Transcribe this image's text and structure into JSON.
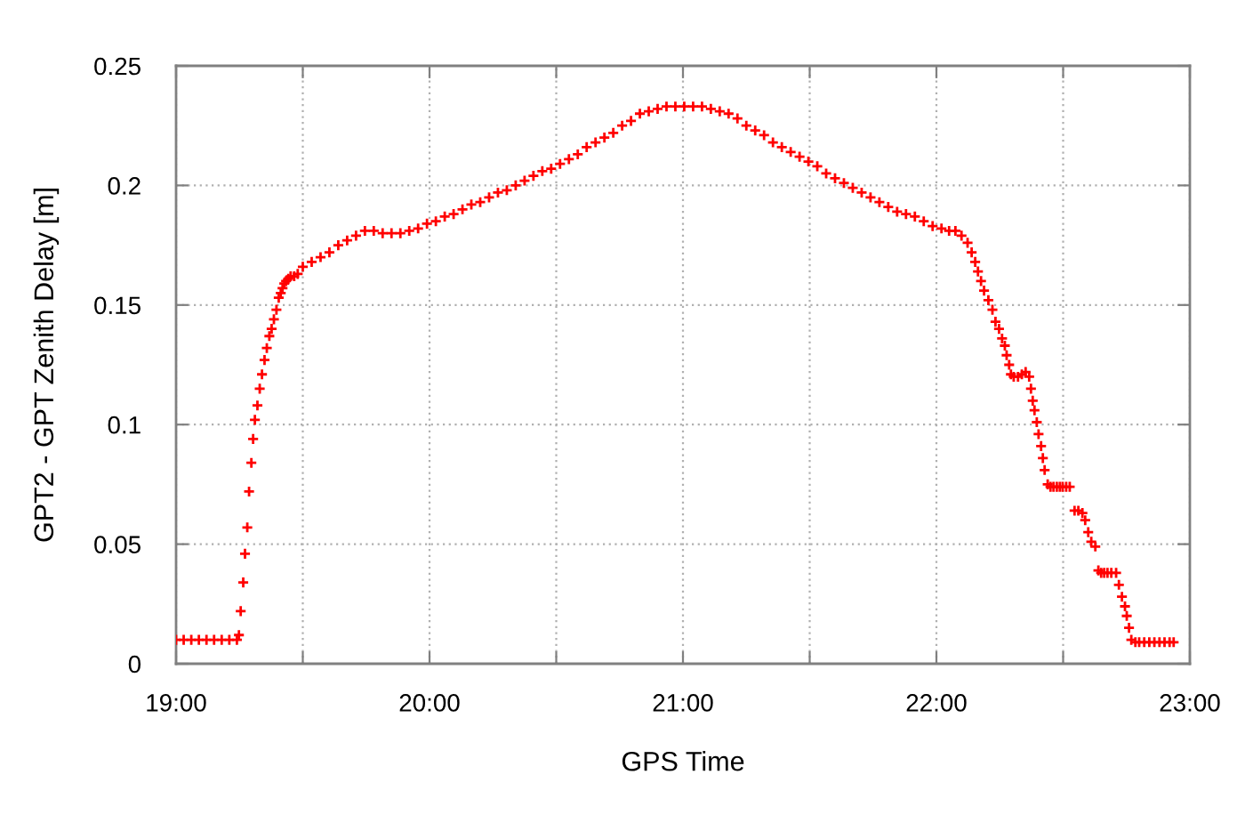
{
  "chart_data": {
    "type": "scatter",
    "xlabel": "GPS Time",
    "ylabel": "GPT2 - GPT Zenith Delay [m]",
    "color": "#ff0000",
    "marker": "cross",
    "grid": true,
    "xlim": [
      19,
      23
    ],
    "ylim": [
      0,
      0.25
    ],
    "xticks": [
      {
        "value": 19,
        "label": "19:00"
      },
      {
        "value": 19.5,
        "label": null
      },
      {
        "value": 20,
        "label": "20:00"
      },
      {
        "value": 20.5,
        "label": null
      },
      {
        "value": 21,
        "label": "21:00"
      },
      {
        "value": 21.5,
        "label": null
      },
      {
        "value": 22,
        "label": "22:00"
      },
      {
        "value": 22.5,
        "label": null
      },
      {
        "value": 23,
        "label": "23:00"
      }
    ],
    "yticks": [
      0,
      0.05,
      0.1,
      0.15,
      0.2,
      0.25
    ],
    "x": [
      19.0,
      19.03,
      19.06,
      19.09,
      19.12,
      19.15,
      19.18,
      19.21,
      19.24,
      19.248,
      19.255,
      19.265,
      19.272,
      19.281,
      19.288,
      19.297,
      19.304,
      19.311,
      19.321,
      19.33,
      19.339,
      19.349,
      19.358,
      19.368,
      19.377,
      19.386,
      19.396,
      19.405,
      19.413,
      19.42,
      19.427,
      19.434,
      19.443,
      19.452,
      19.466,
      19.48,
      19.5,
      19.535,
      19.57,
      19.605,
      19.64,
      19.675,
      19.71,
      19.745,
      19.78,
      19.815,
      19.85,
      19.885,
      19.92,
      19.955,
      19.99,
      20.025,
      20.06,
      20.095,
      20.13,
      20.165,
      20.2,
      20.235,
      20.27,
      20.305,
      20.34,
      20.375,
      20.41,
      20.445,
      20.48,
      20.515,
      20.55,
      20.585,
      20.62,
      20.655,
      20.69,
      20.725,
      20.76,
      20.795,
      20.83,
      20.865,
      20.9,
      20.935,
      20.97,
      21.005,
      21.04,
      21.075,
      21.11,
      21.145,
      21.18,
      21.215,
      21.25,
      21.285,
      21.32,
      21.355,
      21.39,
      21.425,
      21.46,
      21.495,
      21.53,
      21.565,
      21.6,
      21.635,
      21.67,
      21.705,
      21.74,
      21.775,
      21.81,
      21.845,
      21.88,
      21.915,
      21.95,
      21.985,
      22.02,
      22.05,
      22.075,
      22.099,
      22.123,
      22.139,
      22.153,
      22.164,
      22.176,
      22.188,
      22.205,
      22.221,
      22.233,
      22.247,
      22.259,
      22.27,
      22.277,
      22.287,
      22.294,
      22.305,
      22.322,
      22.337,
      22.352,
      22.366,
      22.373,
      22.38,
      22.387,
      22.396,
      22.403,
      22.413,
      22.42,
      22.427,
      22.439,
      22.45,
      22.462,
      22.475,
      22.487,
      22.498,
      22.512,
      22.526,
      22.545,
      22.56,
      22.576,
      22.587,
      22.599,
      22.611,
      22.627,
      22.639,
      22.65,
      22.662,
      22.675,
      22.69,
      22.709,
      22.72,
      22.732,
      22.744,
      22.751,
      22.76,
      22.769,
      22.785,
      22.8,
      22.82,
      22.84,
      22.86,
      22.88,
      22.9,
      22.92,
      22.936
    ],
    "values": [
      0.01,
      0.01,
      0.01,
      0.01,
      0.01,
      0.01,
      0.01,
      0.01,
      0.01,
      0.012,
      0.022,
      0.034,
      0.046,
      0.057,
      0.072,
      0.084,
      0.094,
      0.102,
      0.108,
      0.115,
      0.121,
      0.127,
      0.132,
      0.137,
      0.14,
      0.144,
      0.148,
      0.153,
      0.155,
      0.157,
      0.159,
      0.16,
      0.161,
      0.162,
      0.162,
      0.163,
      0.166,
      0.168,
      0.17,
      0.172,
      0.175,
      0.177,
      0.179,
      0.181,
      0.181,
      0.18,
      0.18,
      0.18,
      0.181,
      0.182,
      0.184,
      0.185,
      0.187,
      0.188,
      0.19,
      0.192,
      0.193,
      0.195,
      0.197,
      0.198,
      0.2,
      0.202,
      0.204,
      0.206,
      0.207,
      0.209,
      0.211,
      0.213,
      0.216,
      0.218,
      0.22,
      0.222,
      0.225,
      0.227,
      0.23,
      0.231,
      0.232,
      0.233,
      0.233,
      0.233,
      0.233,
      0.233,
      0.232,
      0.231,
      0.23,
      0.228,
      0.225,
      0.223,
      0.221,
      0.218,
      0.216,
      0.214,
      0.212,
      0.21,
      0.208,
      0.205,
      0.203,
      0.201,
      0.199,
      0.197,
      0.195,
      0.193,
      0.191,
      0.189,
      0.188,
      0.187,
      0.185,
      0.183,
      0.182,
      0.181,
      0.181,
      0.179,
      0.176,
      0.172,
      0.168,
      0.164,
      0.16,
      0.156,
      0.152,
      0.148,
      0.143,
      0.14,
      0.136,
      0.133,
      0.129,
      0.125,
      0.121,
      0.12,
      0.12,
      0.121,
      0.122,
      0.12,
      0.115,
      0.11,
      0.106,
      0.101,
      0.096,
      0.091,
      0.086,
      0.081,
      0.075,
      0.074,
      0.074,
      0.074,
      0.074,
      0.074,
      0.074,
      0.074,
      0.064,
      0.064,
      0.063,
      0.06,
      0.055,
      0.051,
      0.049,
      0.039,
      0.038,
      0.038,
      0.038,
      0.038,
      0.038,
      0.033,
      0.028,
      0.024,
      0.02,
      0.015,
      0.01,
      0.009,
      0.009,
      0.009,
      0.009,
      0.009,
      0.009,
      0.009,
      0.009,
      0.009
    ]
  }
}
